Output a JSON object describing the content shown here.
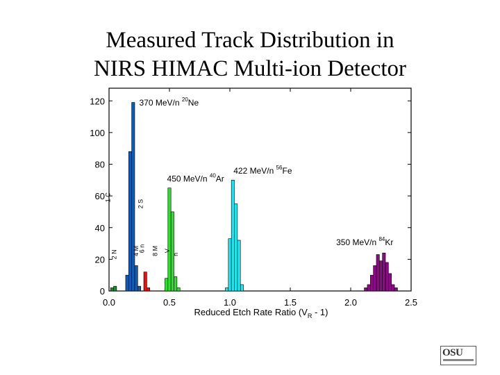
{
  "slide": {
    "title_line1": "Measured Track Distribution in",
    "title_line2": "NIRS HIMAC Multi-ion Detector"
  },
  "logo": {
    "text": "OSU"
  },
  "chart_data": {
    "type": "bar",
    "xlabel": "Reduced Etch Rate Ratio (V",
    "xlabel_sub": "R",
    "xlabel_tail": " - 1)",
    "ylabel": "",
    "xlim": [
      0.0,
      2.5
    ],
    "ylim": [
      0,
      128
    ],
    "x_ticks": [
      "0.0",
      "0.5",
      "1.0",
      "1.5",
      "2.0",
      "2.5"
    ],
    "y_ticks": [
      "0",
      "20",
      "40",
      "60",
      "80",
      "100",
      "120"
    ],
    "grid": false,
    "bin_width": 0.025,
    "series": [
      {
        "color": "#1c8a2e",
        "points": [
          [
            0.025,
            2
          ],
          [
            0.05,
            3
          ]
        ]
      },
      {
        "color": "#0f5cb4",
        "points": [
          [
            0.15,
            10
          ],
          [
            0.175,
            88
          ],
          [
            0.2,
            119
          ],
          [
            0.225,
            16
          ],
          [
            0.25,
            3
          ]
        ]
      },
      {
        "color": "#e81010",
        "points": [
          [
            0.3,
            12
          ],
          [
            0.325,
            2
          ]
        ]
      },
      {
        "color": "#2ee02e",
        "points": [
          [
            0.475,
            8
          ],
          [
            0.5,
            65
          ],
          [
            0.525,
            50
          ],
          [
            0.55,
            9
          ],
          [
            0.575,
            2
          ]
        ]
      },
      {
        "color": "#18e8f0",
        "points": [
          [
            0.975,
            2
          ],
          [
            1.0,
            33
          ],
          [
            1.025,
            70
          ],
          [
            1.05,
            55
          ],
          [
            1.075,
            32
          ],
          [
            1.1,
            4
          ]
        ]
      },
      {
        "color": "#8b0b84",
        "points": [
          [
            2.125,
            2
          ],
          [
            2.15,
            4
          ],
          [
            2.175,
            10
          ],
          [
            2.2,
            16
          ],
          [
            2.225,
            23
          ],
          [
            2.25,
            19
          ],
          [
            2.275,
            24
          ],
          [
            2.3,
            18
          ],
          [
            2.325,
            11
          ],
          [
            2.35,
            4
          ],
          [
            2.375,
            2
          ]
        ]
      }
    ],
    "annotations": [
      {
        "prefix": "370 MeV/n ",
        "mass": "20",
        "element": "Ne",
        "x": 0.25,
        "y": 117
      },
      {
        "prefix": "450 MeV/n ",
        "mass": "40",
        "element": "Ar",
        "x": 0.48,
        "y": 69
      },
      {
        "prefix": "422 MeV/n ",
        "mass": "56",
        "element": "Fe",
        "x": 1.03,
        "y": 74
      },
      {
        "prefix": "350 MeV/n ",
        "mass": "84",
        "element": "Kr",
        "x": 1.88,
        "y": 29
      }
    ],
    "vertical_labels": [
      {
        "text": "1 C",
        "x": 0.01,
        "y": 56
      },
      {
        "text": "2 S",
        "x": 0.28,
        "y": 52
      },
      {
        "text": "2 N",
        "x": 0.06,
        "y": 20
      },
      {
        "text": "4 M",
        "x": 0.24,
        "y": 22
      },
      {
        "text": "6 n",
        "x": 0.29,
        "y": 24
      },
      {
        "text": "8 M",
        "x": 0.4,
        "y": 22
      },
      {
        "text": "V",
        "x": 0.5,
        "y": 24
      },
      {
        "text": "n",
        "x": 0.57,
        "y": 22
      }
    ]
  }
}
